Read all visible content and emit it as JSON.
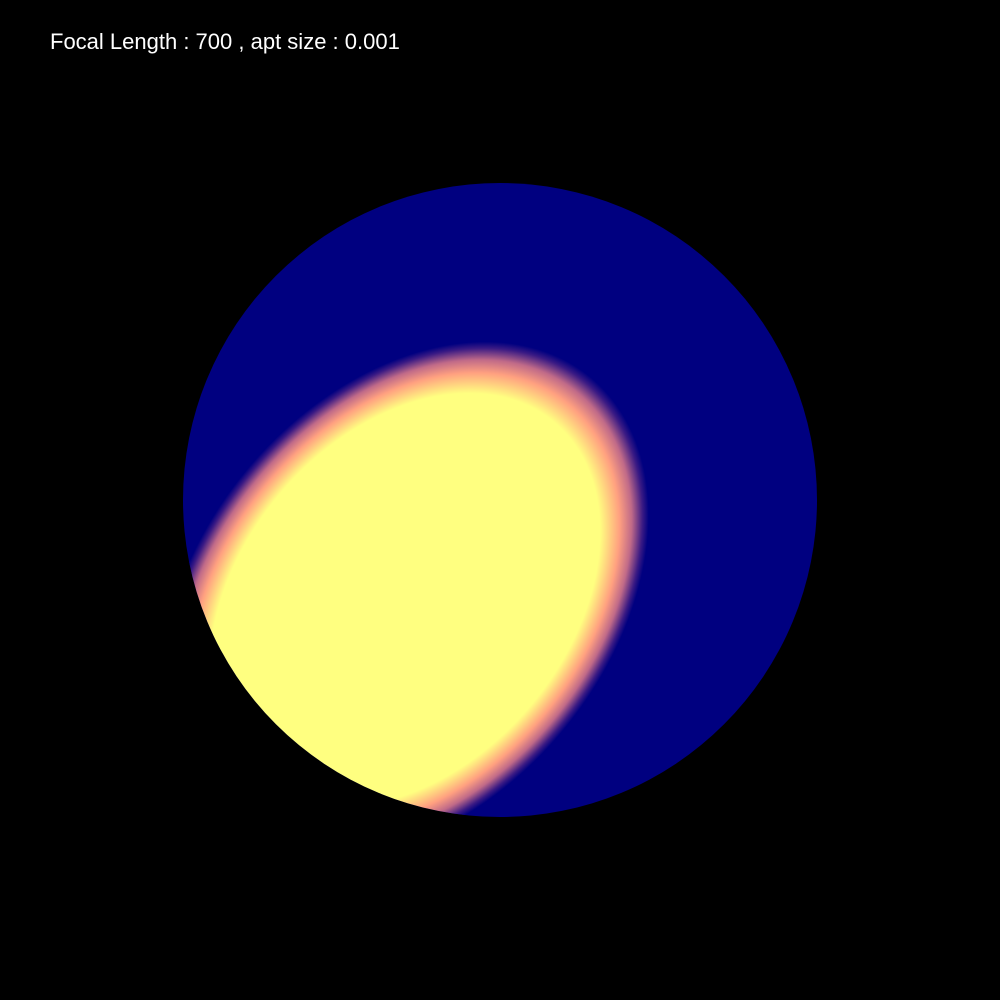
{
  "hud": {
    "focal_label": "Focal Length",
    "separator": " : ",
    "focal_value": "700",
    "comma": " , ",
    "aperture_label": "apt size",
    "aperture_value": "0.001"
  },
  "scene": {
    "object": "sphere",
    "colors": {
      "background": "#000000",
      "shadow": "#000080",
      "highlight": "#FFFF80",
      "rim": "#FFA080"
    }
  }
}
